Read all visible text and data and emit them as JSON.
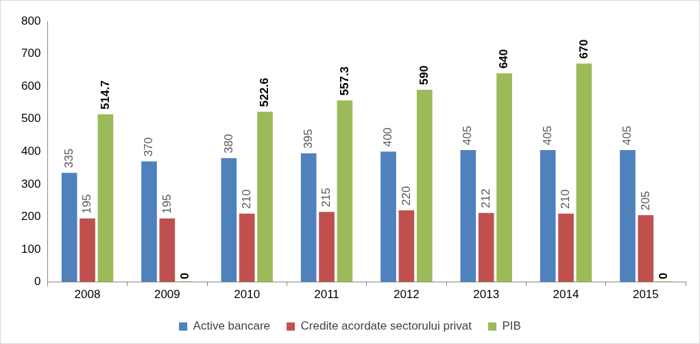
{
  "chart_data": {
    "type": "bar",
    "categories": [
      "2008",
      "2009",
      "2010",
      "2011",
      "2012",
      "2013",
      "2014",
      "2015"
    ],
    "series": [
      {
        "name": "Active bancare",
        "color": "#4f81bd",
        "values": [
          335,
          370,
          380,
          395,
          400,
          405,
          405,
          405
        ]
      },
      {
        "name": "Credite acordate sectorului privat",
        "color": "#c0504d",
        "values": [
          195,
          195,
          210,
          215,
          220,
          212,
          210,
          205
        ]
      },
      {
        "name": "PIB",
        "color": "#9bbb59",
        "values": [
          514.7,
          0,
          522.6,
          557.3,
          590,
          640,
          670,
          0
        ]
      }
    ],
    "ylim": [
      0,
      800
    ],
    "yticks": [
      0,
      100,
      200,
      300,
      400,
      500,
      600,
      700,
      800
    ],
    "grid": false,
    "legend": "bottom",
    "data_labels": true
  }
}
